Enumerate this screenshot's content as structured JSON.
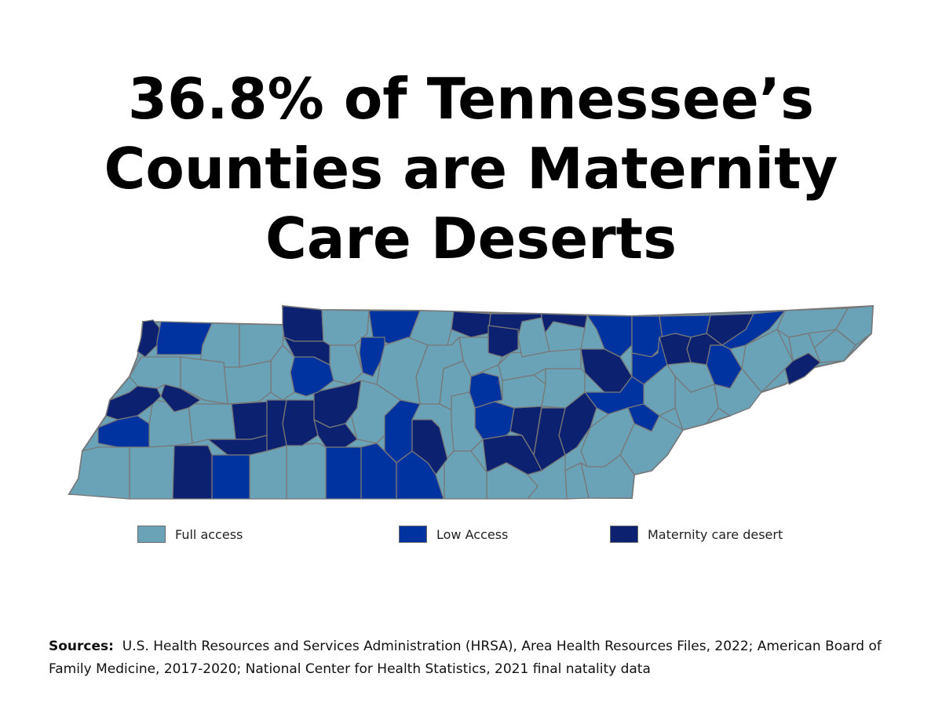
{
  "title": {
    "line1": "36.8% of Tennessee’s",
    "line2": "Counties are Maternity",
    "line3": "Care Deserts"
  },
  "legend": {
    "full": {
      "label": "Full access",
      "color": "#6aa3b8"
    },
    "low": {
      "label": "Low Access",
      "color": "#0033a0"
    },
    "desert": {
      "label": "Maternity care desert",
      "color": "#0c2270"
    }
  },
  "sources": {
    "label": "Sources:",
    "text": "U.S. Health Resources and Services Administration (HRSA), Area Health Resources Files, 2022; American Board of Family Medicine, 2017-2020; National Center for Health Statistics, 2021 final natality data"
  },
  "chart_data": {
    "type": "choropleth",
    "title": "36.8% of Tennessee’s Counties are Maternity Care Deserts",
    "region": "Tennessee counties",
    "headline_stat": {
      "value": 36.8,
      "unit": "%",
      "description": "counties that are maternity care deserts"
    },
    "categories": [
      "Full access",
      "Low Access",
      "Maternity care desert"
    ],
    "colors": {
      "Full access": "#6aa3b8",
      "Low Access": "#0033a0",
      "Maternity care desert": "#0c2270"
    },
    "legend_position": "bottom"
  },
  "map": {
    "border_color": "#777777",
    "counties": [
      {
        "c": "desert",
        "p": "182,410 195,408 205,420 200,440 185,455 175,448 180,430"
      },
      {
        "c": "low",
        "p": "205,410 270,412 268,440 260,452 200,452 200,435"
      },
      {
        "c": "full",
        "p": "270,412 305,413 305,468 290,470 278,462 255,462 258,440"
      },
      {
        "c": "full",
        "p": "305,413 362,414 360,440 345,460 305,468"
      },
      {
        "c": "desert",
        "p": "360,390 410,395 412,435 375,435 362,430 360,415"
      },
      {
        "c": "full",
        "p": "410,395 470,396 468,425 452,440 420,440 412,435"
      },
      {
        "c": "low",
        "p": "470,396 535,396 522,430 495,438 475,430"
      },
      {
        "c": "full",
        "p": "535,396 578,397 575,420 570,440 550,445 530,440 522,430"
      },
      {
        "c": "desert",
        "p": "578,397 625,400 622,425 600,430 575,420"
      },
      {
        "c": "desert",
        "p": "625,400 690,400 688,425 660,428 640,420 622,425"
      },
      {
        "c": "desert",
        "p": "690,400 748,402 745,418 715,430 688,425"
      },
      {
        "c": "low",
        "p": "748,402 805,403 805,440 790,455 770,445 760,420"
      },
      {
        "c": "low",
        "p": "805,403 840,403 845,440 830,455 805,450"
      },
      {
        "c": "low",
        "p": "840,403 905,402 900,425 880,430 860,425 845,440"
      },
      {
        "c": "desert",
        "p": "905,402 960,400 950,420 920,440 900,425"
      },
      {
        "c": "low",
        "p": "960,400 1000,396 980,420 950,440 930,445 920,440 950,420"
      },
      {
        "c": "full",
        "p": "1000,396 1080,393 1065,420 1030,425 1005,430 990,420"
      },
      {
        "c": "full",
        "p": "1080,393 1112,390 1110,425 1090,440 1065,420"
      },
      {
        "c": "full",
        "p": "1065,420 1090,440 1075,460 1045,462 1035,445"
      },
      {
        "c": "full",
        "p": "1005,430 1030,425 1045,462 1030,470 1010,460"
      },
      {
        "c": "desert",
        "p": "1010,460 1030,450 1045,462 1025,480 1005,490 1000,470"
      },
      {
        "c": "full",
        "p": "950,440 990,420 1010,460 1000,470 985,485 970,500 945,470"
      },
      {
        "c": "low",
        "p": "905,440 920,440 930,445 945,470 930,495 910,490 900,465"
      },
      {
        "c": "desert",
        "p": "880,430 900,425 920,440 905,440 900,465 880,462 875,445"
      },
      {
        "c": "desert",
        "p": "840,430 860,425 880,430 875,445 880,462 850,465 838,450"
      },
      {
        "c": "full",
        "p": "850,465 880,462 900,465 910,490 880,500 860,480"
      },
      {
        "c": "full",
        "p": "910,490 930,495 945,470 970,500 955,520 930,530 915,520"
      },
      {
        "c": "full",
        "p": "860,480 880,500 910,490 915,520 900,540 870,548 860,520"
      },
      {
        "c": "full",
        "p": "820,490 850,465 860,480 860,520 840,530 820,515"
      },
      {
        "c": "low",
        "p": "805,450 830,455 838,450 840,430 850,465 820,490 805,480"
      },
      {
        "c": "desert",
        "p": "740,445 770,445 790,455 805,480 790,500 770,500 745,475"
      },
      {
        "c": "low",
        "p": "745,500 770,500 790,500 805,480 820,490 820,515 800,520 775,528 760,520"
      },
      {
        "c": "low",
        "p": "800,520 820,515 840,530 830,550 808,540"
      },
      {
        "c": "desert",
        "p": "720,520 745,500 760,520 752,545 735,570 720,580 712,555"
      },
      {
        "c": "full",
        "p": "752,545 775,528 800,520 808,540 790,580 770,595 748,595 740,575"
      },
      {
        "c": "full",
        "p": "790,580 808,540 830,550 840,530 870,548 850,580 830,600 808,605"
      },
      {
        "c": "full",
        "p": "740,590 748,595 770,595 790,580 808,605 805,635 750,635"
      },
      {
        "c": "full",
        "p": "720,600 740,590 750,635 722,636"
      },
      {
        "c": "desert",
        "p": "690,520 720,520 712,555 720,580 690,600 680,580"
      },
      {
        "c": "full",
        "p": "672,605 690,600 720,580 720,600 722,636 672,636 685,620"
      },
      {
        "c": "desert",
        "p": "655,520 690,518 680,580 665,555 650,550"
      },
      {
        "c": "desert",
        "p": "615,560 645,555 665,555 680,580 690,600 672,605 645,590 620,602"
      },
      {
        "c": "full",
        "p": "620,602 645,590 672,605 685,620 672,636 620,636"
      },
      {
        "c": "low",
        "p": "605,520 630,512 655,520 650,550 645,555 615,560 605,545"
      },
      {
        "c": "low",
        "p": "600,480 615,475 635,480 640,510 630,512 605,520 598,500"
      },
      {
        "c": "full",
        "p": "640,485 680,478 695,490 690,518 655,520 630,512 640,510"
      },
      {
        "c": "full",
        "p": "695,470 740,470 745,475 745,500 720,520 690,518 695,490"
      },
      {
        "c": "full",
        "p": "650,450 690,448 740,445 740,470 695,470 680,478 640,485 635,465"
      },
      {
        "c": "full",
        "p": "705,410 745,418 740,445 700,448 690,430"
      },
      {
        "c": "full",
        "p": "665,410 690,405 700,448 665,455 660,430"
      },
      {
        "c": "desert",
        "p": "622,415 660,420 660,445 640,455 622,450"
      },
      {
        "c": "full",
        "p": "585,430 622,430 622,450 640,455 635,465 600,480 590,460"
      },
      {
        "c": "full",
        "p": "565,470 590,460 600,480 598,500 580,525 560,515"
      },
      {
        "c": "full",
        "p": "575,505 598,500 605,520 605,545 615,560 600,575 578,575 575,540"
      },
      {
        "c": "full",
        "p": "566,588 578,575 600,575 620,602 620,636 566,636"
      },
      {
        "c": "desert",
        "p": "525,535 550,535 560,545 570,585 555,605 545,590 525,575"
      },
      {
        "c": "full",
        "p": "545,440 575,440 585,430 590,460 565,470 560,515 535,515 530,480"
      },
      {
        "c": "full",
        "p": "490,440 520,430 545,440 530,480 535,515 510,510 480,490 485,460"
      },
      {
        "c": "full",
        "p": "460,485 480,490 510,510 505,540 480,565 455,560 445,520"
      },
      {
        "c": "low",
        "p": "490,530 510,510 535,515 525,535 525,575 505,590 490,575"
      },
      {
        "c": "low",
        "p": "505,590 525,575 545,590 555,605 565,636 505,636"
      },
      {
        "c": "low",
        "p": "460,570 480,565 490,575 505,590 505,636 460,636"
      },
      {
        "c": "low",
        "p": "415,570 440,570 460,570 460,636 415,636"
      },
      {
        "c": "low",
        "p": "460,430 490,430 490,440 485,460 475,480 462,475 458,450"
      },
      {
        "c": "full",
        "p": "420,440 452,440 462,475 445,490 425,485 420,465"
      },
      {
        "c": "desert",
        "p": "400,500 445,490 460,485 455,520 440,540 420,545 400,535"
      },
      {
        "c": "desert",
        "p": "400,535 420,545 440,540 455,560 440,570 415,570 405,555"
      },
      {
        "c": "full",
        "p": "365,568 405,565 415,570 415,636 365,636"
      },
      {
        "c": "full",
        "p": "318,580 340,575 365,568 365,636 318,636"
      },
      {
        "c": "desert",
        "p": "365,510 400,510 400,535 405,555 385,568 365,568 360,540"
      },
      {
        "c": "desert",
        "p": "340,510 365,510 360,540 365,568 340,575 335,545"
      },
      {
        "c": "low",
        "p": "375,455 400,455 420,465 425,485 405,500 390,505 375,500 370,475"
      },
      {
        "c": "desert",
        "p": "362,430 375,435 412,435 420,440 420,465 400,455 375,455"
      },
      {
        "c": "full",
        "p": "345,460 360,440 375,455 370,475 375,500 360,510 345,500"
      },
      {
        "c": "full",
        "p": "285,468 305,468 345,460 345,500 330,512 290,515"
      },
      {
        "c": "desert",
        "p": "295,515 340,512 340,555 320,560 300,560"
      },
      {
        "c": "desert",
        "p": "265,560 300,560 320,560 340,555 340,575 318,580 290,580"
      },
      {
        "c": "low",
        "p": "270,580 290,580 318,580 318,636 270,636"
      },
      {
        "c": "desert",
        "p": "220,568 265,568 270,580 270,636 220,636"
      },
      {
        "c": "full",
        "p": "240,515 290,515 295,515 300,560 265,560 245,565"
      },
      {
        "c": "full",
        "p": "195,510 230,515 240,515 245,565 222,568 190,570 190,540"
      },
      {
        "c": "desert",
        "p": "210,490 230,495 255,510 240,520 222,525 205,505"
      },
      {
        "c": "full",
        "p": "230,455 285,462 290,515 260,510 230,495"
      },
      {
        "c": "full",
        "p": "180,455 230,455 230,495 210,490 200,495 175,492 165,480"
      },
      {
        "c": "desert",
        "p": "140,510 165,500 175,492 200,495 205,505 195,515 175,530 150,535 135,530"
      },
      {
        "c": "low",
        "p": "125,545 150,535 175,530 190,540 190,570 150,570 125,565"
      },
      {
        "c": "full",
        "p": "165,570 190,570 222,568 220,636 165,636"
      },
      {
        "c": "full",
        "p": "105,575 125,570 150,570 165,570 165,636 88,630 100,610"
      }
    ]
  }
}
